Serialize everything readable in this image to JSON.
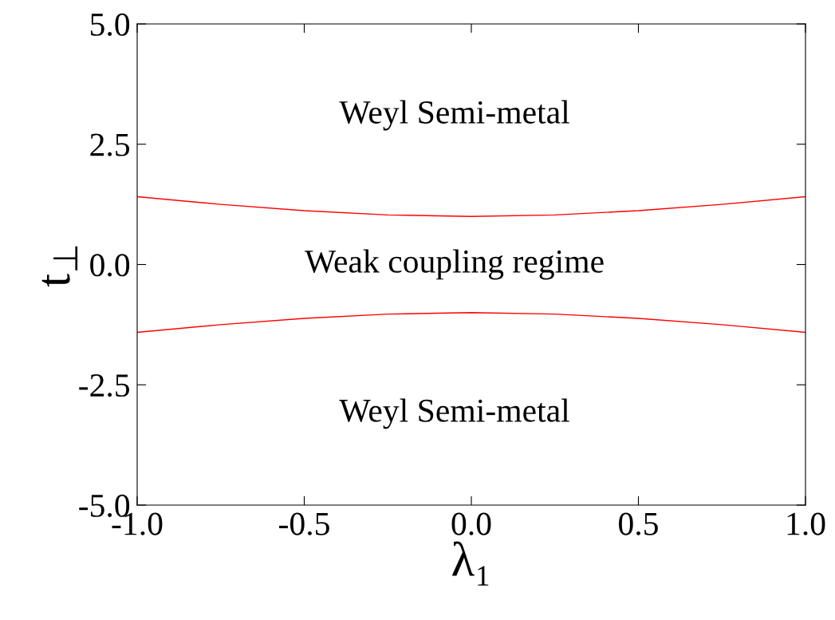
{
  "chart_data": {
    "type": "line",
    "xlabel": "λ₁",
    "ylabel": "t$_{⊥}$",
    "x": [
      -1.0,
      -0.75,
      -0.5,
      -0.25,
      0.0,
      0.25,
      0.5,
      0.75,
      1.0
    ],
    "series": [
      {
        "color": "#ff0000",
        "values": [
          1.41,
          1.25,
          1.12,
          1.03,
          1.0,
          1.03,
          1.12,
          1.25,
          1.41
        ]
      },
      {
        "color": "#ff0000",
        "values": [
          -1.41,
          -1.25,
          -1.12,
          -1.03,
          -1.0,
          -1.03,
          -1.12,
          -1.25,
          -1.41
        ]
      }
    ],
    "xlim": [
      -1.0,
      1.0
    ],
    "xticks": [
      {
        "value": -1.0,
        "label": "-1.0"
      },
      {
        "value": -0.5,
        "label": "-0.5"
      },
      {
        "value": 0.0,
        "label": "0.0"
      },
      {
        "value": 0.5,
        "label": "0.5"
      },
      {
        "value": 1.0,
        "label": "1.0"
      }
    ],
    "ylim": [
      -5.0,
      5.0
    ],
    "yticks": [
      {
        "value": -5.0,
        "label": "-5.0"
      },
      {
        "value": -2.5,
        "label": "-2.5"
      },
      {
        "value": 0.0,
        "label": "0.0"
      },
      {
        "value": 2.5,
        "label": "2.5"
      },
      {
        "value": 5.0,
        "label": "5.0"
      }
    ],
    "annotations": [
      "Weyl Semi-metal",
      "Weak coupling regime",
      "Weyl Semi-metal"
    ],
    "grid": false,
    "legend": false,
    "marker": "none",
    "line_style": "solid"
  }
}
